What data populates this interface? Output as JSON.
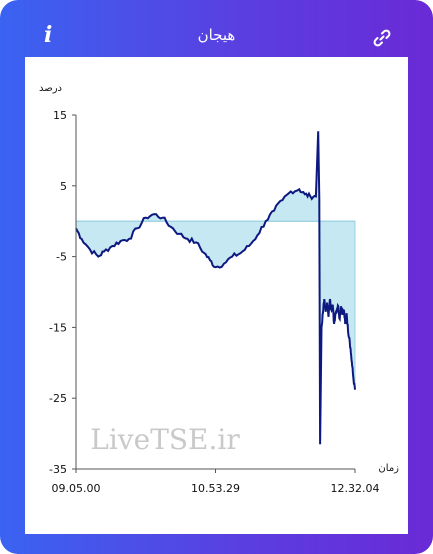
{
  "header": {
    "title": "هیجان",
    "info_icon": "info-icon",
    "link_icon": "link-icon"
  },
  "colors": {
    "frame_start": "#3a63f2",
    "frame_end": "#6a2ad6",
    "line": "#0d1980",
    "fill": "#c5e8f2"
  },
  "watermark": "LiveTSE.ir",
  "chart_data": {
    "type": "area",
    "ylabel": "درصد",
    "xlabel": "زمان",
    "ylim": [
      -35,
      15
    ],
    "yticks": [
      "15",
      "5",
      "-5",
      "-15",
      "-25",
      "-35"
    ],
    "ytick_values": [
      15,
      5,
      -5,
      -15,
      -25,
      -35
    ],
    "xticks": [
      "09.05.00",
      "10.53.29",
      "12.32.04"
    ],
    "x_range": [
      0,
      1
    ],
    "baseline": 0,
    "series": [
      {
        "x": [
          0,
          0.02,
          0.05,
          0.08,
          0.1,
          0.13,
          0.16,
          0.19,
          0.22,
          0.25,
          0.28,
          0.31,
          0.34,
          0.37,
          0.4,
          0.43,
          0.46,
          0.48,
          0.5,
          0.53,
          0.56,
          0.59,
          0.62,
          0.65,
          0.68,
          0.71,
          0.74,
          0.77,
          0.8,
          0.82,
          0.84,
          0.86,
          0.868,
          0.872,
          0.875,
          0.88,
          0.885,
          0.89,
          0.895,
          0.9,
          0.905,
          0.91,
          0.915,
          0.92,
          0.925,
          0.93,
          0.935,
          0.94,
          0.945,
          0.95,
          0.955,
          0.96,
          0.965,
          0.97,
          0.975,
          0.98,
          0.985,
          0.99,
          0.995,
          1.0
        ],
        "y": [
          -1,
          -2.5,
          -4,
          -5,
          -4.3,
          -3.5,
          -2.8,
          -2.5,
          -1,
          0.5,
          1,
          0.5,
          -0.8,
          -1.8,
          -2.5,
          -3,
          -4.5,
          -5.5,
          -6.5,
          -6,
          -5,
          -4.5,
          -3.5,
          -2,
          0,
          1.5,
          3,
          4.2,
          4.5,
          3.8,
          3.5,
          3.5,
          12.7,
          3.2,
          -31.5,
          -15,
          -13,
          -11,
          -12.8,
          -11.5,
          -13.5,
          -11,
          -12.5,
          -11.8,
          -14.5,
          -13,
          -12.5,
          -12,
          -13.8,
          -12,
          -13,
          -12.5,
          -14.5,
          -13,
          -15.5,
          -16.5,
          -18.5,
          -20.5,
          -22.5,
          -23.8
        ]
      }
    ]
  }
}
